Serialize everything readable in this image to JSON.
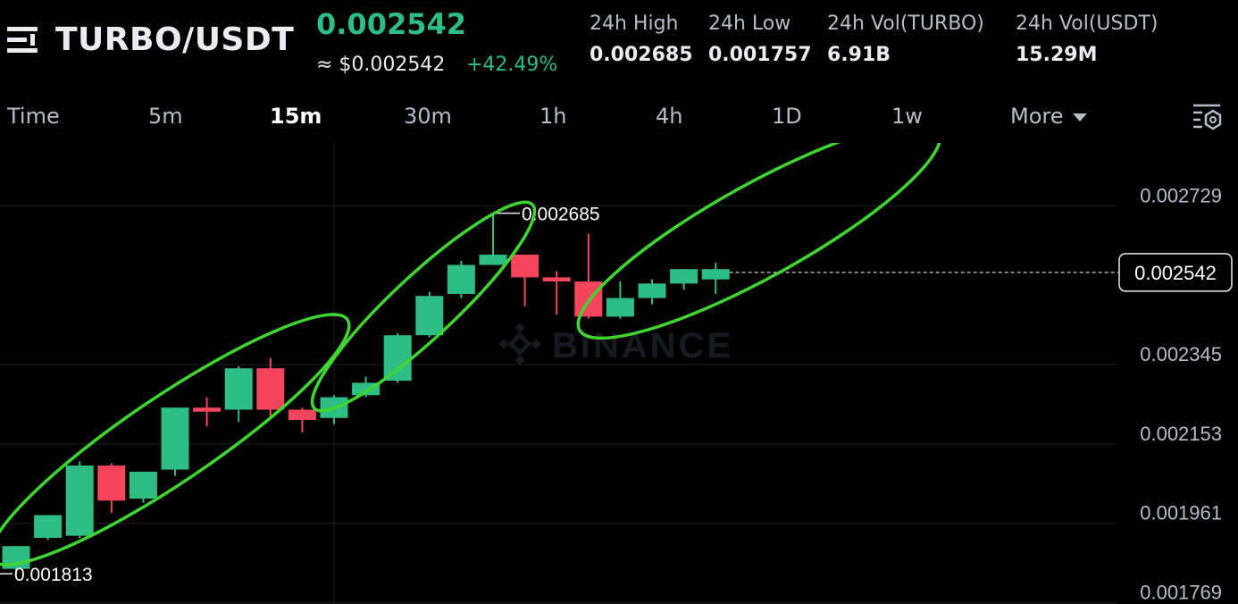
{
  "header": {
    "pair": "TURBO/USDT",
    "last_price": "0.002542",
    "fiat_price": "≈ $0.002542",
    "change": "+42.49%",
    "stats": [
      {
        "label": "24h High",
        "value": "0.002685"
      },
      {
        "label": "24h Low",
        "value": "0.001757"
      },
      {
        "label": "24h Vol(TURBO)",
        "value": "6.91B"
      },
      {
        "label": "24h Vol(USDT)",
        "value": "15.29M"
      }
    ]
  },
  "tabs": [
    {
      "label": "Time"
    },
    {
      "label": "5m"
    },
    {
      "label": "15m",
      "active": true
    },
    {
      "label": "30m"
    },
    {
      "label": "1h"
    },
    {
      "label": "4h"
    },
    {
      "label": "1D"
    },
    {
      "label": "1w"
    },
    {
      "label": "More"
    }
  ],
  "icons": {
    "menu": "menu-icon",
    "settings": "chart-settings-icon",
    "more": "caret-down-icon"
  },
  "colors": {
    "up": "#2ebd85",
    "down": "#f6465d",
    "background": "#000000",
    "annotation": "#3fd631"
  },
  "chart_data": {
    "type": "candlestick",
    "y_ticks": [
      "0.002729",
      "0.002345",
      "0.002153",
      "0.001961",
      "0.001769"
    ],
    "ylim": [
      0.00174,
      0.002855
    ],
    "current_price_label": "0.002542",
    "high_marker": "0.002685",
    "low_marker": "0.001813",
    "watermark": "BINANCE",
    "candles": [
      {
        "o": 0.001825,
        "h": 0.00188,
        "c": 0.00188,
        "l": 0.001813
      },
      {
        "o": 0.0019,
        "h": 0.001955,
        "c": 0.001955,
        "l": 0.001895
      },
      {
        "o": 0.001905,
        "h": 0.002085,
        "c": 0.002075,
        "l": 0.0019
      },
      {
        "o": 0.002075,
        "h": 0.00208,
        "c": 0.00199,
        "l": 0.00196
      },
      {
        "o": 0.001995,
        "h": 0.00206,
        "c": 0.00206,
        "l": 0.001985
      },
      {
        "o": 0.002065,
        "h": 0.002215,
        "c": 0.002215,
        "l": 0.00205
      },
      {
        "o": 0.002215,
        "h": 0.00224,
        "c": 0.002205,
        "l": 0.00217
      },
      {
        "o": 0.00221,
        "h": 0.002315,
        "c": 0.00231,
        "l": 0.00218
      },
      {
        "o": 0.00231,
        "h": 0.002335,
        "c": 0.00221,
        "l": 0.00219
      },
      {
        "o": 0.00221,
        "h": 0.002215,
        "c": 0.002185,
        "l": 0.002155
      },
      {
        "o": 0.00219,
        "h": 0.002245,
        "c": 0.00224,
        "l": 0.002175
      },
      {
        "o": 0.002245,
        "h": 0.00229,
        "c": 0.002275,
        "l": 0.00224
      },
      {
        "o": 0.00228,
        "h": 0.002395,
        "c": 0.00239,
        "l": 0.002275
      },
      {
        "o": 0.00239,
        "h": 0.002495,
        "c": 0.002485,
        "l": 0.002385
      },
      {
        "o": 0.00249,
        "h": 0.00257,
        "c": 0.00256,
        "l": 0.00248
      },
      {
        "o": 0.00256,
        "h": 0.002685,
        "c": 0.002585,
        "l": 0.00256
      },
      {
        "o": 0.002585,
        "h": 0.002585,
        "c": 0.00253,
        "l": 0.00246
      },
      {
        "o": 0.00253,
        "h": 0.002545,
        "c": 0.00252,
        "l": 0.00244
      },
      {
        "o": 0.00252,
        "h": 0.002635,
        "c": 0.002435,
        "l": 0.00243
      },
      {
        "o": 0.002435,
        "h": 0.00252,
        "c": 0.00248,
        "l": 0.00243
      },
      {
        "o": 0.00248,
        "h": 0.002525,
        "c": 0.002515,
        "l": 0.002465
      },
      {
        "o": 0.002515,
        "h": 0.00255,
        "c": 0.00255,
        "l": 0.0025
      },
      {
        "o": 0.002525,
        "h": 0.002565,
        "c": 0.00255,
        "l": 0.00249
      }
    ]
  }
}
